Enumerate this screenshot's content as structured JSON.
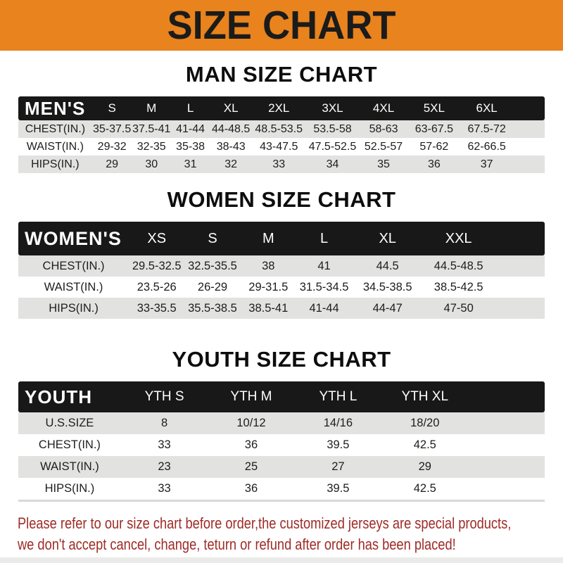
{
  "banner": {
    "title": "SIZE CHART"
  },
  "colors": {
    "banner-bg": "#E8831D",
    "bar-bg": "#181818",
    "row-gray": "#E2E2E1",
    "notice-color": "#9E2B26"
  },
  "sections": [
    {
      "heading": "MAN SIZE CHART",
      "header_label": "MEN'S",
      "columns": [
        "S",
        "M",
        "L",
        "XL",
        "2XL",
        "3XL",
        "4XL",
        "5XL",
        "6XL"
      ],
      "rows": [
        {
          "label": "CHEST(IN.)",
          "values": [
            "35-37.5",
            "37.5-41",
            "41-44",
            "44-48.5",
            "48.5-53.5",
            "53.5-58",
            "58-63",
            "63-67.5",
            "67.5-72"
          ]
        },
        {
          "label": "WAIST(IN.)",
          "values": [
            "29-32",
            "32-35",
            "35-38",
            "38-43",
            "43-47.5",
            "47.5-52.5",
            "52.5-57",
            "57-62",
            "62-66.5"
          ]
        },
        {
          "label": "HIPS(IN.)",
          "values": [
            "29",
            "30",
            "31",
            "32",
            "33",
            "34",
            "35",
            "36",
            "37"
          ]
        }
      ]
    },
    {
      "heading": "WOMEN SIZE CHART",
      "header_label": "WOMEN'S",
      "columns": [
        "XS",
        "S",
        "M",
        "L",
        "XL",
        "XXL"
      ],
      "rows": [
        {
          "label": "CHEST(IN.)",
          "values": [
            "29.5-32.5",
            "32.5-35.5",
            "38",
            "41",
            "44.5",
            "44.5-48.5"
          ]
        },
        {
          "label": "WAIST(IN.)",
          "values": [
            "23.5-26",
            "26-29",
            "29-31.5",
            "31.5-34.5",
            "34.5-38.5",
            "38.5-42.5"
          ]
        },
        {
          "label": "HIPS(IN.)",
          "values": [
            "33-35.5",
            "35.5-38.5",
            "38.5-41",
            "41-44",
            "44-47",
            "47-50"
          ]
        }
      ]
    },
    {
      "heading": "YOUTH SIZE CHART",
      "header_label": "YOUTH",
      "columns": [
        "YTH S",
        "YTH M",
        "YTH L",
        "YTH XL"
      ],
      "rows": [
        {
          "label": "U.S.SIZE",
          "values": [
            "8",
            "10/12",
            "14/16",
            "18/20"
          ]
        },
        {
          "label": "CHEST(IN.)",
          "values": [
            "33",
            "36",
            "39.5",
            "42.5"
          ]
        },
        {
          "label": "WAIST(IN.)",
          "values": [
            "23",
            "25",
            "27",
            "29"
          ]
        },
        {
          "label": "HIPS(IN.)",
          "values": [
            "33",
            "36",
            "39.5",
            "42.5"
          ]
        }
      ]
    }
  ],
  "footer": {
    "line1": "Please refer to our size chart before order,the customized jerseys are special products,",
    "line2": "we don't accept cancel, change, teturn or refund after order has been placed!"
  }
}
